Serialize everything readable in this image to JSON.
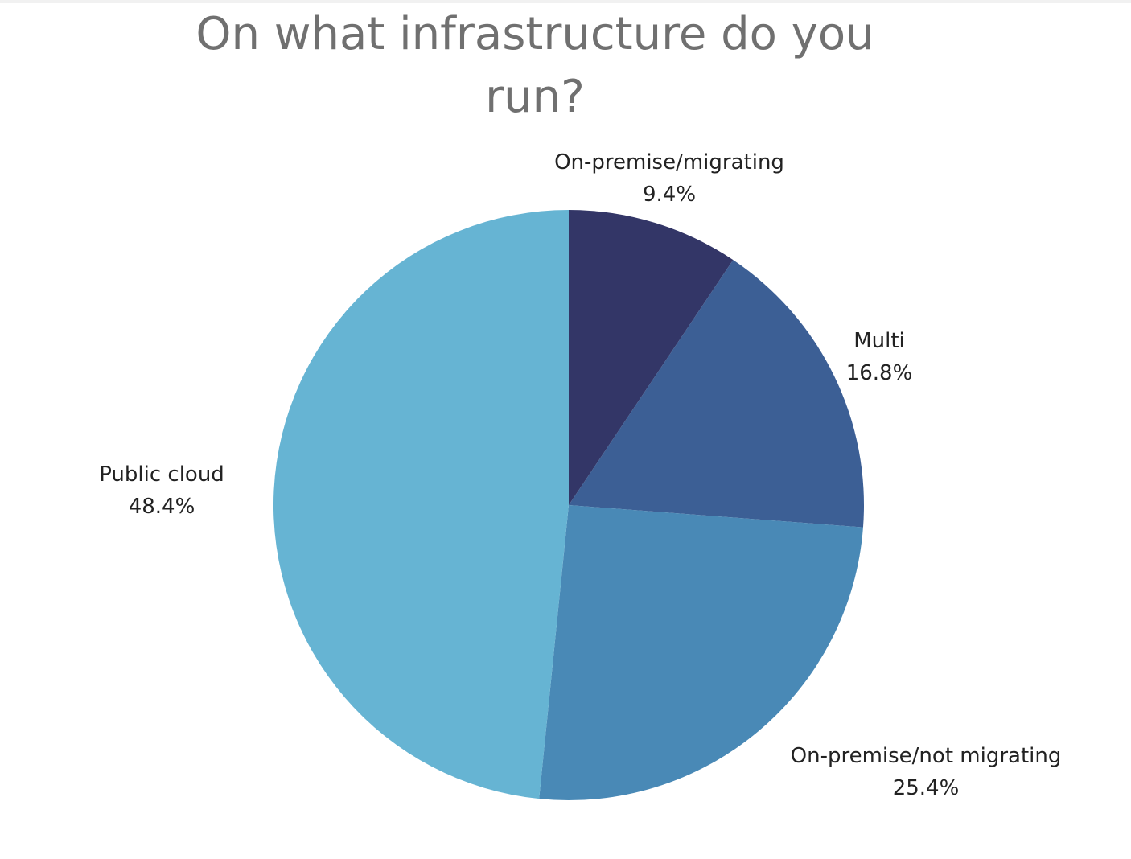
{
  "chart_data": {
    "type": "pie",
    "title": "On what infrastructure do you run?",
    "slices": [
      {
        "label": "On-premise/migrating",
        "value": 9.4,
        "display": "9.4%",
        "color": "#333667"
      },
      {
        "label": "Multi",
        "value": 16.8,
        "display": "16.8%",
        "color": "#3c5f95"
      },
      {
        "label": "On-premise/not migrating",
        "value": 25.4,
        "display": "25.4%",
        "color": "#4989b6"
      },
      {
        "label": "Public cloud",
        "value": 48.4,
        "display": "48.4%",
        "color": "#66b4d3"
      }
    ],
    "start_angle_deg": 0,
    "direction": "clockwise",
    "legend": "none"
  }
}
